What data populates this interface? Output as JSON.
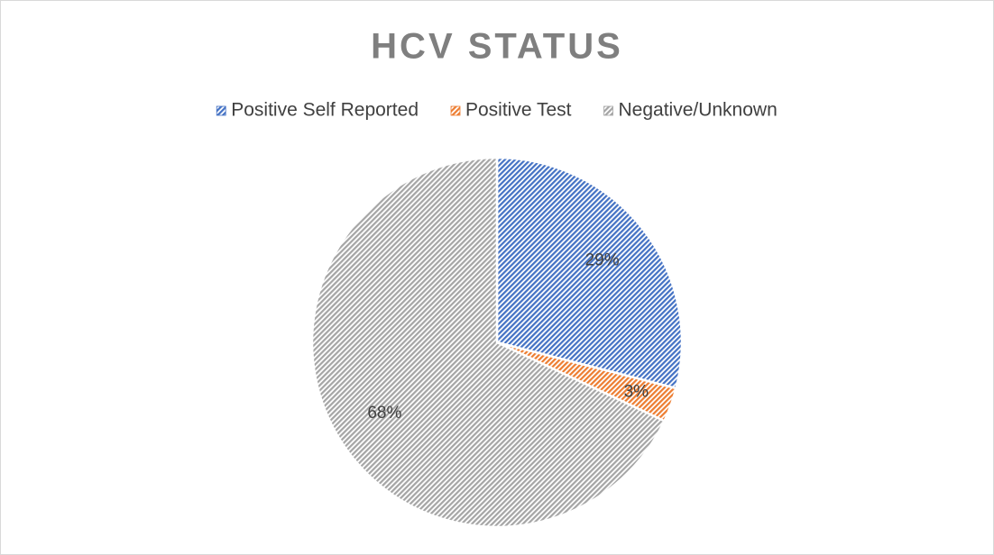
{
  "chart_data": {
    "type": "pie",
    "title": "HCV STATUS",
    "categories": [
      "Positive Self Reported",
      "Positive Test",
      "Negative/Unknown"
    ],
    "values": [
      29,
      3,
      68
    ],
    "value_labels": [
      "29%",
      "3%",
      "68%"
    ],
    "colors": [
      "#4472c4",
      "#ed7d31",
      "#a5a5a5"
    ],
    "legend": "top"
  }
}
